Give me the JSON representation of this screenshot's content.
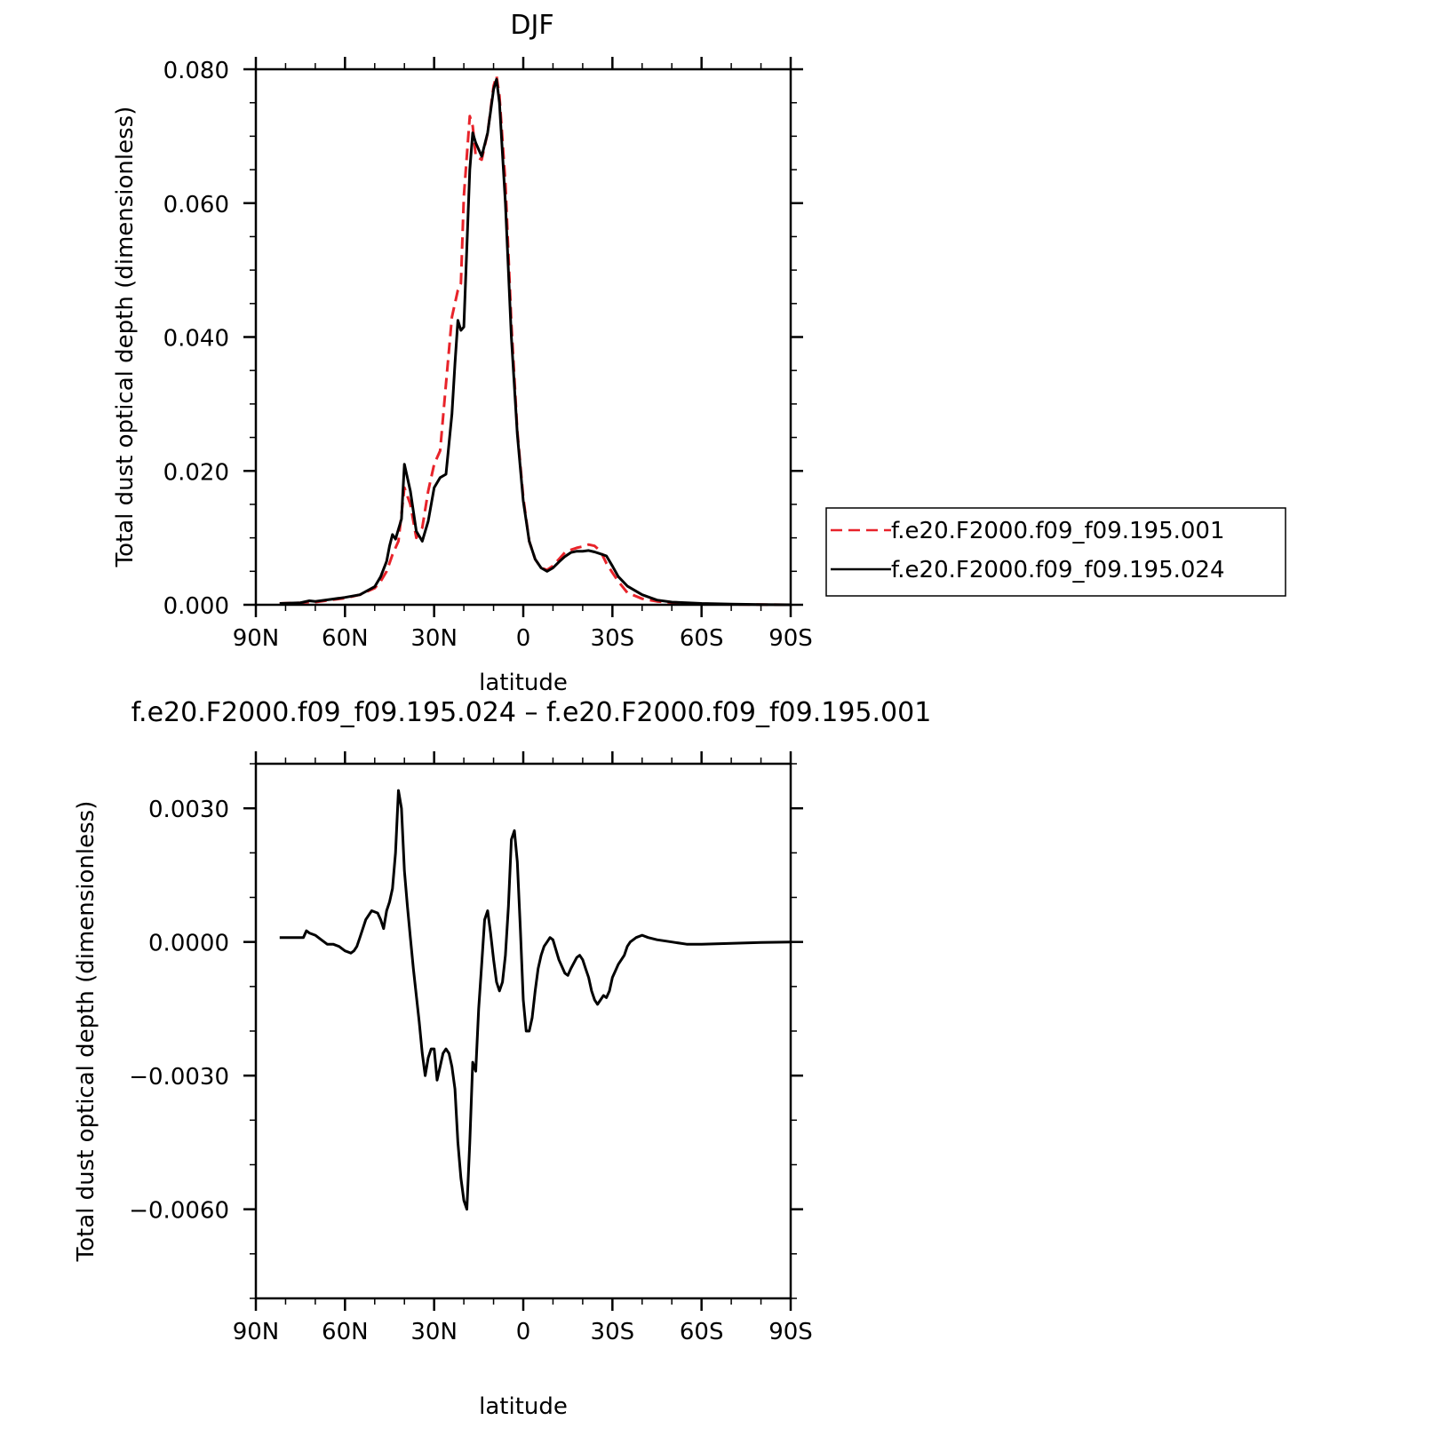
{
  "chart_data": [
    {
      "type": "line",
      "title": "DJF",
      "xlabel": "latitude",
      "ylabel": "Total dust optical depth (dimensionless)",
      "xlim": [
        90,
        -90
      ],
      "ylim": [
        0,
        0.08
      ],
      "x_unit_note": "positive = N, negative = S",
      "xticks": [
        {
          "value": 90,
          "label": "90N"
        },
        {
          "value": 60,
          "label": "60N"
        },
        {
          "value": 30,
          "label": "30N"
        },
        {
          "value": 0,
          "label": "0"
        },
        {
          "value": -30,
          "label": "30S"
        },
        {
          "value": -60,
          "label": "60S"
        },
        {
          "value": -90,
          "label": "90S"
        }
      ],
      "yticks": [
        {
          "value": 0,
          "label": "0.000"
        },
        {
          "value": 0.02,
          "label": "0.020"
        },
        {
          "value": 0.04,
          "label": "0.040"
        },
        {
          "value": 0.06,
          "label": "0.060"
        },
        {
          "value": 0.08,
          "label": "0.080"
        }
      ],
      "grid": false,
      "legend": {
        "placement": "right",
        "entries": [
          {
            "name": "f.e20.F2000.f09_f09.195.001",
            "color": "#e8232a",
            "style": "dashed"
          },
          {
            "name": "f.e20.F2000.f09_f09.195.024",
            "color": "#000000",
            "style": "solid"
          }
        ]
      },
      "series": [
        {
          "name": "f.e20.F2000.f09_f09.195.001",
          "color": "#e8232a",
          "style": "dashed",
          "x": [
            82,
            75,
            72,
            70,
            65,
            60,
            55,
            50,
            48,
            46,
            44,
            42,
            40,
            38,
            36,
            34,
            32,
            30,
            28,
            26,
            24,
            22,
            21,
            20,
            18,
            17,
            16,
            14,
            12,
            10,
            9,
            8,
            6,
            4,
            2,
            0,
            -2,
            -4,
            -6,
            -8,
            -10,
            -12,
            -14,
            -16,
            -18,
            -20,
            -22,
            -24,
            -26,
            -28,
            -30,
            -32,
            -35,
            -40,
            -45,
            -50,
            -60,
            -70,
            -80,
            -90
          ],
          "y": [
            0.0002,
            0.0003,
            0.0004,
            0.0004,
            0.0007,
            0.001,
            0.0015,
            0.0025,
            0.0035,
            0.005,
            0.0075,
            0.0095,
            0.0175,
            0.015,
            0.01,
            0.0115,
            0.017,
            0.021,
            0.023,
            0.033,
            0.043,
            0.047,
            0.048,
            0.061,
            0.073,
            0.0715,
            0.067,
            0.0665,
            0.0705,
            0.0775,
            0.079,
            0.076,
            0.063,
            0.042,
            0.026,
            0.016,
            0.0095,
            0.0068,
            0.0055,
            0.0052,
            0.0058,
            0.0068,
            0.0078,
            0.0082,
            0.0085,
            0.0087,
            0.009,
            0.0088,
            0.008,
            0.0062,
            0.0048,
            0.0035,
            0.0018,
            0.0009,
            0.0005,
            0.0003,
            0.0001,
            5e-05,
            2e-05,
            0.0
          ]
        },
        {
          "name": "f.e20.F2000.f09_f09.195.024",
          "color": "#000000",
          "style": "solid",
          "x": [
            82,
            75,
            72,
            70,
            65,
            60,
            55,
            50,
            48,
            46,
            45,
            44,
            43,
            41,
            40,
            38,
            36,
            34,
            32,
            30,
            28,
            26,
            24,
            23,
            22,
            21,
            20,
            18,
            17,
            16,
            14,
            12,
            10,
            9,
            8,
            6,
            4,
            2,
            0,
            -2,
            -4,
            -6,
            -8,
            -10,
            -12,
            -14,
            -16,
            -18,
            -20,
            -22,
            -24,
            -26,
            -28,
            -30,
            -32,
            -35,
            -40,
            -45,
            -50,
            -60,
            -70,
            -80,
            -90
          ],
          "y": [
            0.0002,
            0.0003,
            0.0006,
            0.0005,
            0.0008,
            0.0011,
            0.0015,
            0.0027,
            0.0042,
            0.0065,
            0.0088,
            0.0105,
            0.0098,
            0.0128,
            0.021,
            0.017,
            0.011,
            0.0095,
            0.0125,
            0.0175,
            0.019,
            0.0195,
            0.0285,
            0.036,
            0.0425,
            0.041,
            0.0415,
            0.065,
            0.0705,
            0.069,
            0.067,
            0.0705,
            0.077,
            0.0785,
            0.075,
            0.06,
            0.04,
            0.0255,
            0.0155,
            0.0095,
            0.0068,
            0.0055,
            0.005,
            0.0055,
            0.0064,
            0.0072,
            0.0078,
            0.008,
            0.008,
            0.0081,
            0.0079,
            0.0076,
            0.0073,
            0.0058,
            0.0042,
            0.0028,
            0.0015,
            0.0007,
            0.0004,
            0.0002,
            0.0001,
            3e-05,
            0.0
          ]
        }
      ]
    },
    {
      "type": "line",
      "title": "f.e20.F2000.f09_f09.195.024 – f.e20.F2000.f09_f09.195.001",
      "xlabel": "latitude",
      "ylabel": "Total dust optical depth (dimensionless)",
      "xlim": [
        90,
        -90
      ],
      "ylim": [
        -0.008,
        0.004
      ],
      "x_unit_note": "positive = N, negative = S",
      "xticks": [
        {
          "value": 90,
          "label": "90N"
        },
        {
          "value": 60,
          "label": "60N"
        },
        {
          "value": 30,
          "label": "30N"
        },
        {
          "value": 0,
          "label": "0"
        },
        {
          "value": -30,
          "label": "30S"
        },
        {
          "value": -60,
          "label": "60S"
        },
        {
          "value": -90,
          "label": "90S"
        }
      ],
      "yticks": [
        {
          "value": 0.003,
          "label": "0.0030"
        },
        {
          "value": 0.0,
          "label": "0.0000"
        },
        {
          "value": -0.003,
          "label": "−0.0030"
        },
        {
          "value": -0.006,
          "label": "−0.0060"
        }
      ],
      "grid": false,
      "series": [
        {
          "color": "#000000",
          "style": "solid",
          "x": [
            82,
            78,
            74,
            73,
            72,
            70,
            68,
            66,
            64,
            62,
            60,
            58,
            57,
            56,
            55,
            53,
            51,
            49,
            48,
            47,
            46,
            45,
            44,
            43,
            42,
            41,
            40,
            39,
            38,
            37,
            36,
            35,
            34,
            33,
            32,
            31,
            30,
            29,
            28,
            27,
            26,
            25,
            24,
            23,
            22,
            21,
            20,
            19,
            18,
            17,
            16,
            15,
            14,
            13,
            12,
            11,
            10,
            9,
            8,
            7,
            6,
            5,
            4,
            3,
            2,
            1,
            0,
            -1,
            -2,
            -3,
            -4,
            -5,
            -6,
            -7,
            -8,
            -9,
            -10,
            -12,
            -14,
            -15,
            -16,
            -18,
            -19,
            -20,
            -21,
            -22,
            -23,
            -24,
            -25,
            -26,
            -27,
            -28,
            -29,
            -30,
            -31,
            -32,
            -33,
            -34,
            -35,
            -36,
            -38,
            -40,
            -42,
            -45,
            -50,
            -55,
            -60,
            -70,
            -80,
            -90
          ],
          "y": [
            0.0001,
            0.0001,
            0.0001,
            0.00025,
            0.0002,
            0.00015,
            5e-05,
            -5e-05,
            -5e-05,
            -0.0001,
            -0.0002,
            -0.00025,
            -0.0002,
            -0.0001,
            0.0001,
            0.0005,
            0.0007,
            0.00065,
            0.0005,
            0.0003,
            0.0007,
            0.0009,
            0.0012,
            0.002,
            0.0034,
            0.003,
            0.0016,
            0.0008,
            0.0001,
            -0.0006,
            -0.0012,
            -0.0018,
            -0.0025,
            -0.003,
            -0.0026,
            -0.0024,
            -0.0024,
            -0.0031,
            -0.0028,
            -0.0025,
            -0.0024,
            -0.0025,
            -0.0028,
            -0.0033,
            -0.0045,
            -0.0053,
            -0.0058,
            -0.006,
            -0.0045,
            -0.0027,
            -0.0029,
            -0.0015,
            -0.0005,
            0.0005,
            0.0007,
            0.0002,
            -0.0004,
            -0.0009,
            -0.0011,
            -0.0009,
            -0.0003,
            0.0008,
            0.0023,
            0.0025,
            0.0018,
            0.0003,
            -0.0013,
            -0.002,
            -0.002,
            -0.0017,
            -0.0011,
            -0.0006,
            -0.0003,
            -0.0001,
            0.0,
            0.0001,
            5e-05,
            -0.0004,
            -0.0007,
            -0.00075,
            -0.0006,
            -0.00035,
            -0.0003,
            -0.0004,
            -0.0006,
            -0.0008,
            -0.0011,
            -0.0013,
            -0.0014,
            -0.0013,
            -0.0012,
            -0.00125,
            -0.0011,
            -0.0008,
            -0.00065,
            -0.0005,
            -0.0004,
            -0.0003,
            -0.0001,
            0.0,
            0.0001,
            0.00015,
            0.0001,
            5e-05,
            0.0,
            -5e-05,
            -5e-05,
            -3e-05,
            -1e-05,
            0.0
          ]
        }
      ]
    }
  ]
}
